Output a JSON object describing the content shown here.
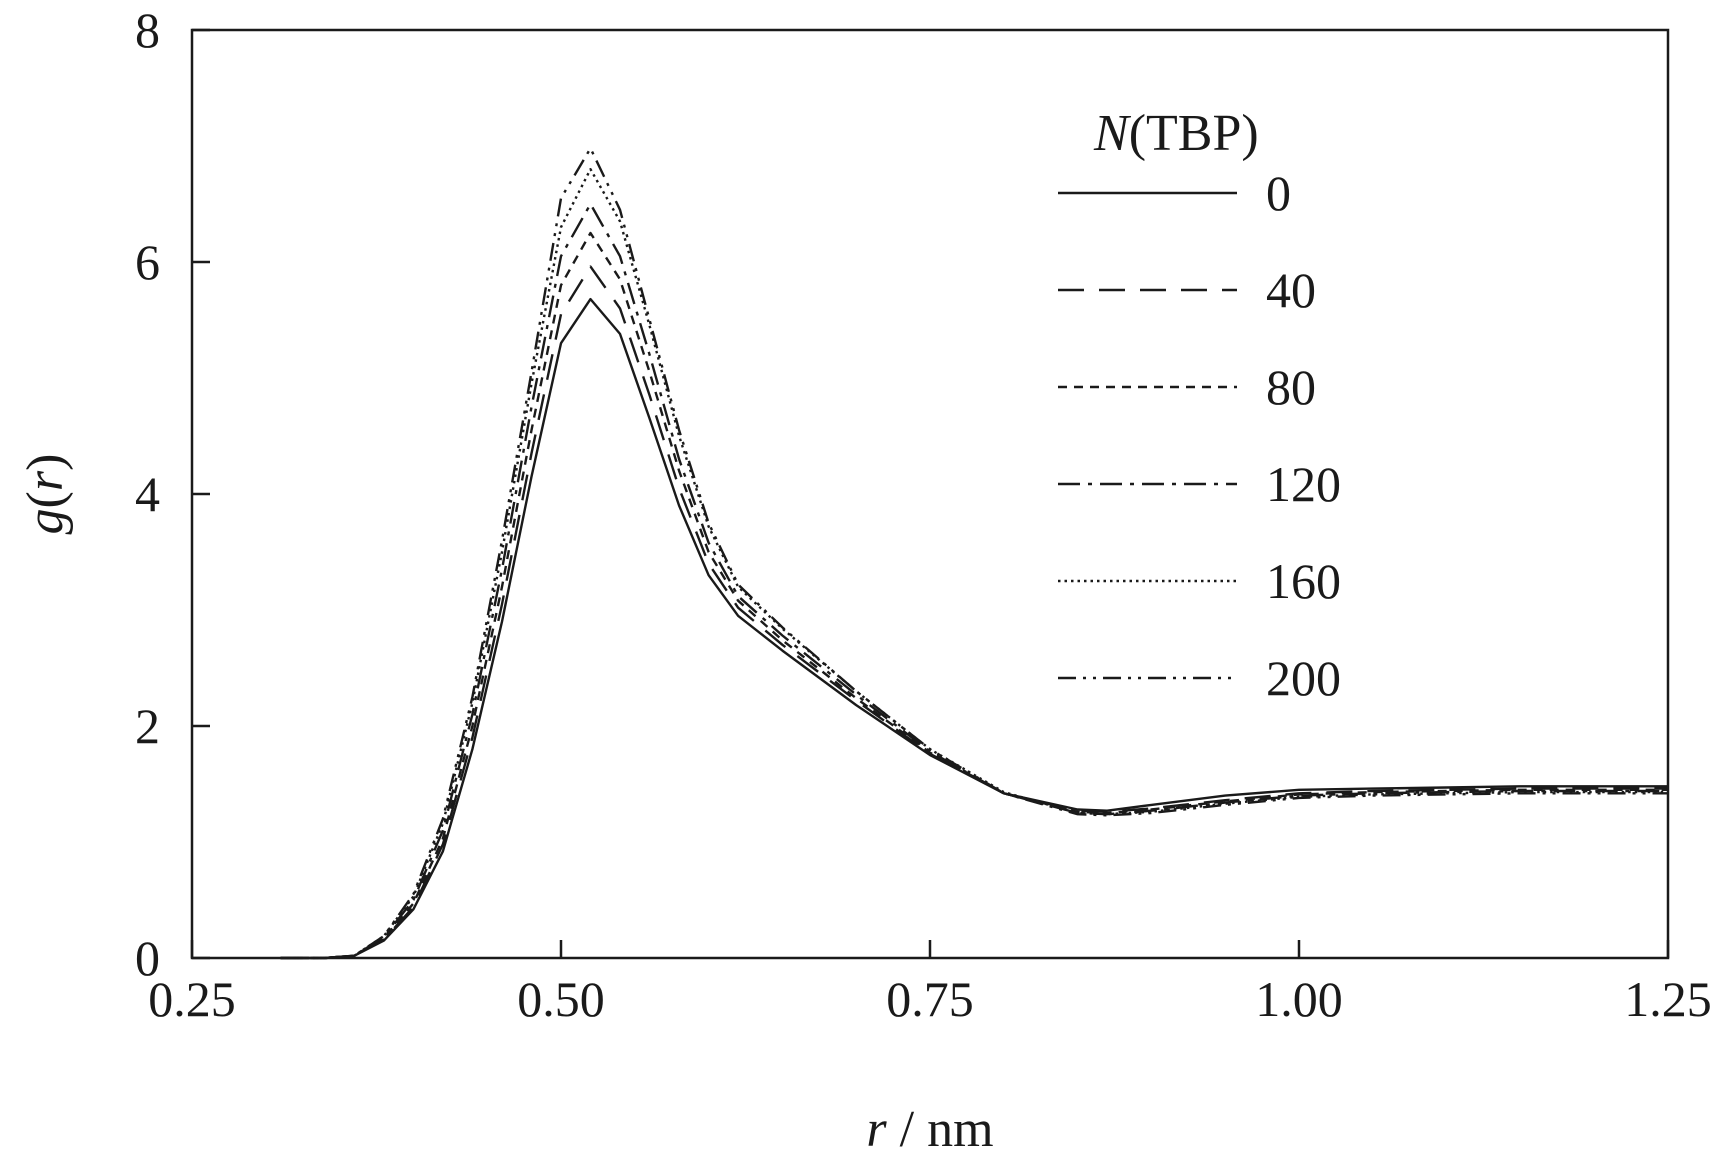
{
  "chart_data": {
    "type": "line",
    "title": "",
    "xlabel": {
      "var": "r",
      "rest": " / nm"
    },
    "ylabel": {
      "pre": "g",
      "open": "(",
      "var": "r",
      "close": ")"
    },
    "xlim": [
      0.25,
      1.25
    ],
    "ylim": [
      0,
      8
    ],
    "xticks": [
      0.25,
      0.5,
      0.75,
      1.0,
      1.25
    ],
    "xtick_labels": [
      "0.25",
      "0.50",
      "0.75",
      "1.00",
      "1.25"
    ],
    "yticks": [
      0,
      2,
      4,
      6,
      8
    ],
    "ytick_labels": [
      "0",
      "2",
      "4",
      "6",
      "8"
    ],
    "grid": false,
    "legend": {
      "title_var": "N",
      "title_rest": "(TBP)",
      "placement": "top-right"
    },
    "x": [
      0.31,
      0.34,
      0.36,
      0.38,
      0.4,
      0.42,
      0.44,
      0.46,
      0.48,
      0.5,
      0.52,
      0.54,
      0.56,
      0.58,
      0.6,
      0.62,
      0.65,
      0.7,
      0.75,
      0.8,
      0.85,
      0.87,
      0.9,
      0.95,
      1.0,
      1.05,
      1.1,
      1.15,
      1.2,
      1.25
    ],
    "series": [
      {
        "name": "0",
        "dash": "solid",
        "values": [
          0,
          0,
          0.02,
          0.15,
          0.42,
          0.92,
          1.8,
          2.9,
          4.15,
          5.3,
          5.68,
          5.38,
          4.65,
          3.9,
          3.3,
          2.95,
          2.65,
          2.18,
          1.75,
          1.42,
          1.28,
          1.27,
          1.32,
          1.4,
          1.45,
          1.46,
          1.47,
          1.48,
          1.48,
          1.48
        ]
      },
      {
        "name": "40",
        "dash": "long-dash",
        "values": [
          0,
          0,
          0.02,
          0.16,
          0.44,
          0.98,
          1.9,
          3.05,
          4.35,
          5.55,
          5.96,
          5.6,
          4.85,
          4.05,
          3.4,
          3.02,
          2.7,
          2.22,
          1.76,
          1.42,
          1.27,
          1.26,
          1.29,
          1.36,
          1.42,
          1.44,
          1.45,
          1.46,
          1.46,
          1.46
        ]
      },
      {
        "name": "80",
        "dash": "short-dash",
        "values": [
          0,
          0,
          0.02,
          0.17,
          0.47,
          1.03,
          2.0,
          3.2,
          4.55,
          5.8,
          6.25,
          5.85,
          5.05,
          4.2,
          3.5,
          3.08,
          2.74,
          2.24,
          1.77,
          1.42,
          1.26,
          1.25,
          1.28,
          1.35,
          1.41,
          1.43,
          1.44,
          1.45,
          1.45,
          1.45
        ]
      },
      {
        "name": "120",
        "dash": "dash-dot",
        "values": [
          0,
          0,
          0.02,
          0.18,
          0.5,
          1.1,
          2.1,
          3.35,
          4.75,
          6.05,
          6.5,
          6.05,
          5.2,
          4.3,
          3.58,
          3.12,
          2.78,
          2.27,
          1.78,
          1.42,
          1.25,
          1.24,
          1.27,
          1.34,
          1.4,
          1.42,
          1.43,
          1.44,
          1.44,
          1.44
        ]
      },
      {
        "name": "160",
        "dash": "dotted",
        "values": [
          0,
          0,
          0.02,
          0.19,
          0.53,
          1.16,
          2.2,
          3.5,
          4.95,
          6.3,
          6.8,
          6.35,
          5.45,
          4.5,
          3.72,
          3.2,
          2.84,
          2.3,
          1.8,
          1.43,
          1.25,
          1.24,
          1.26,
          1.33,
          1.39,
          1.41,
          1.42,
          1.43,
          1.43,
          1.43
        ]
      },
      {
        "name": "200",
        "dash": "dash-dot-dot",
        "values": [
          0,
          0,
          0.02,
          0.19,
          0.55,
          1.2,
          2.25,
          3.6,
          5.05,
          6.55,
          6.98,
          6.45,
          5.5,
          4.55,
          3.75,
          3.22,
          2.85,
          2.3,
          1.8,
          1.42,
          1.24,
          1.23,
          1.25,
          1.32,
          1.38,
          1.4,
          1.41,
          1.42,
          1.42,
          1.42
        ]
      }
    ]
  }
}
